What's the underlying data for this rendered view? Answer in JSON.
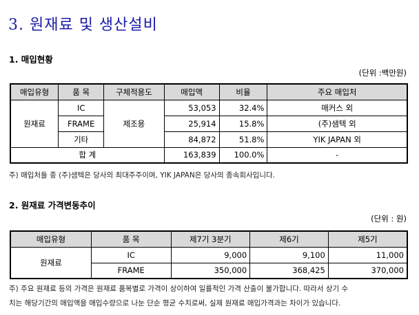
{
  "doc_title": "3. 원재료 및 생산설비",
  "section1": {
    "heading": "1. 매입현황",
    "unit": "(단위 :백만원)",
    "headers": [
      "매입유형",
      "품 목",
      "구체적용도",
      "매입액",
      "비율",
      "주요 매입처"
    ],
    "group": "원재료",
    "usage": "제조용",
    "rows": [
      {
        "item": "IC",
        "amount": "53,053",
        "ratio": "32.4%",
        "vendor": "매커스 외"
      },
      {
        "item": "FRAME",
        "amount": "25,914",
        "ratio": "15.8%",
        "vendor": "(주)샘텍 외"
      },
      {
        "item": "기타",
        "amount": "84,872",
        "ratio": "51.8%",
        "vendor": "YIK JAPAN 외"
      }
    ],
    "total": {
      "label": "합 계",
      "amount": "163,839",
      "ratio": "100.0%",
      "vendor": "-"
    },
    "note": "주) 매입처들 중 (주)샘텍은 당사의 최대주주이며, YIK JAPAN은 당사의 종속회사입니다."
  },
  "section2": {
    "heading": "2. 원재료 가격변동추이",
    "unit": "(단위 : 원)",
    "headers": [
      "매입유형",
      "품 목",
      "제7기 3분기",
      "제6기",
      "제5기"
    ],
    "group": "원재료",
    "rows": [
      {
        "item": "IC",
        "p1": "9,000",
        "p2": "9,100",
        "p3": "11,000"
      },
      {
        "item": "FRAME",
        "p1": "350,000",
        "p2": "368,425",
        "p3": "370,000"
      }
    ],
    "note_line1": "주) 주요 원재료 등의 가격은 원재료 품목별로 가격이 상이하여 일률적인 가격 산출이 불가합니다. 따라서 상기 수",
    "note_line2": "치는 해당기간의 매입액을 매입수량으로 나눈 단순 평균 수치로써, 실제 원재료 매입가격과는 차이가 있습니다."
  }
}
